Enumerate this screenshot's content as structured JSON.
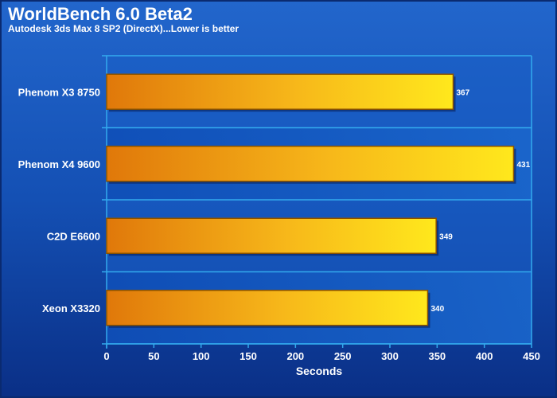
{
  "chart_data": {
    "type": "bar",
    "orientation": "horizontal",
    "title": "WorldBench 6.0 Beta2",
    "subtitle": "Autodesk 3ds Max 8 SP2 (DirectX)...Lower is better",
    "xlabel": "Seconds",
    "ylabel": "",
    "xlim": [
      0,
      450
    ],
    "x_ticks": [
      "0",
      "50",
      "100",
      "150",
      "200",
      "250",
      "300",
      "350",
      "400",
      "450"
    ],
    "categories": [
      "Phenom X3 8750",
      "Phenom X4 9600",
      "C2D E6600",
      "Xeon X3320"
    ],
    "values": [
      367,
      431,
      349,
      340
    ],
    "data_labels": [
      "367",
      "431",
      "349",
      "340"
    ],
    "grid": true,
    "legend": "none"
  },
  "colors": {
    "background_top": "#1f5fc4",
    "background_bottom": "#0a2f86",
    "plot_band_light": "#1a66cc",
    "plot_band_dark": "#0f4fb8",
    "gridline": "#2ea0e8",
    "bar_start": "#e0780a",
    "bar_end": "#ffe81c",
    "bar_border": "#7a4a00",
    "text": "#ffffff"
  }
}
